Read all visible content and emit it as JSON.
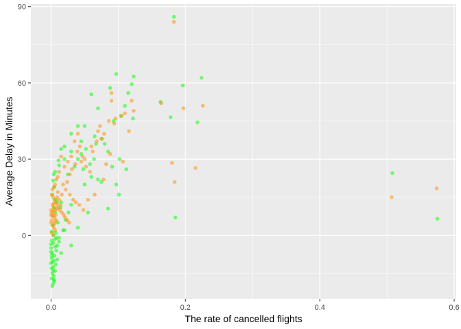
{
  "chart_data": {
    "type": "scatter",
    "title": "",
    "xlabel": "The rate of cancelled flights",
    "ylabel": "Average Delay in Minutes",
    "xlim": [
      -0.03,
      0.603
    ],
    "ylim": [
      -25,
      91
    ],
    "xticks": [
      0.0,
      0.2,
      0.4,
      0.6
    ],
    "xtick_labels": [
      "0.0",
      "0.2",
      "0.4",
      "0.6"
    ],
    "yticks": [
      0,
      30,
      60,
      90
    ],
    "ytick_labels": [
      "0",
      "30",
      "60",
      "90"
    ],
    "grid": true,
    "legend": "none",
    "colors": {
      "panel": "#ebebeb",
      "grid": "#ffffff",
      "series_a": "#00ff00",
      "series_b": "#ff8c00"
    },
    "series": [
      {
        "color": "#00ff00",
        "points": [
          [
            0.183,
            86
          ],
          [
            0.097,
            63.5
          ],
          [
            0.123,
            62.5
          ],
          [
            0.224,
            62
          ],
          [
            0.196,
            59
          ],
          [
            0.12,
            59.5
          ],
          [
            0.088,
            58
          ],
          [
            0.115,
            56
          ],
          [
            0.06,
            55.5
          ],
          [
            0.163,
            52.5
          ],
          [
            0.07,
            50
          ],
          [
            0.11,
            51
          ],
          [
            0.104,
            47
          ],
          [
            0.122,
            46
          ],
          [
            0.093,
            45
          ],
          [
            0.05,
            43
          ],
          [
            0.04,
            43
          ],
          [
            0.03,
            40
          ],
          [
            0.065,
            39
          ],
          [
            0.08,
            36
          ],
          [
            0.045,
            37
          ],
          [
            0.02,
            35
          ],
          [
            0.015,
            34
          ],
          [
            0.03,
            33
          ],
          [
            0.04,
            30
          ],
          [
            0.02,
            30
          ],
          [
            0.102,
            30
          ],
          [
            0.011,
            29.5
          ],
          [
            0.012,
            27.5
          ],
          [
            0.035,
            27
          ],
          [
            0.048,
            26
          ],
          [
            0.112,
            26
          ],
          [
            0.006,
            25
          ],
          [
            0.004,
            24
          ],
          [
            0.025,
            24
          ],
          [
            0.003,
            21.5
          ],
          [
            0.005,
            19
          ],
          [
            0.002,
            16
          ],
          [
            0.007,
            14
          ],
          [
            0.015,
            13
          ],
          [
            0.03,
            12
          ],
          [
            0.004,
            11
          ],
          [
            0.006,
            9
          ],
          [
            0.055,
            9
          ],
          [
            0.085,
            10.5
          ],
          [
            0.178,
            46.5
          ],
          [
            0.218,
            44.5
          ],
          [
            0.508,
            24.5
          ],
          [
            0.575,
            6.5
          ],
          [
            0.185,
            7
          ],
          [
            0.01,
            5
          ],
          [
            0.003,
            4
          ],
          [
            0.04,
            3
          ],
          [
            0.02,
            2
          ],
          [
            0.001,
            1.5
          ],
          [
            0.004,
            0
          ],
          [
            0.008,
            -1
          ],
          [
            0.001,
            -2
          ],
          [
            0.012,
            -2.5
          ],
          [
            0.003,
            -3
          ],
          [
            0.03,
            -4
          ],
          [
            0.006,
            -4.5
          ],
          [
            0.0,
            -5
          ],
          [
            0.008,
            -6
          ],
          [
            0.002,
            -7
          ],
          [
            0.015,
            -7
          ],
          [
            0.005,
            -8
          ],
          [
            0.001,
            -9
          ],
          [
            0.009,
            -9.5
          ],
          [
            0.004,
            -10
          ],
          [
            0.0,
            -11
          ],
          [
            0.007,
            -11.5
          ],
          [
            0.003,
            -12.5
          ],
          [
            0.001,
            -13
          ],
          [
            0.006,
            -14
          ],
          [
            0.002,
            -15
          ],
          [
            0.004,
            -16
          ],
          [
            0.001,
            -17
          ],
          [
            0.005,
            -18
          ],
          [
            0.003,
            -19
          ],
          [
            0.002,
            -20
          ],
          [
            0.009,
            -4
          ],
          [
            0.012,
            -1
          ],
          [
            0.018,
            2
          ],
          [
            0.022,
            6
          ],
          [
            0.026,
            9
          ],
          [
            0.014,
            11
          ],
          [
            0.009,
            13
          ],
          [
            0.05,
            20
          ],
          [
            0.06,
            23
          ],
          [
            0.07,
            22
          ],
          [
            0.075,
            21
          ],
          [
            0.058,
            28
          ],
          [
            0.064,
            30
          ],
          [
            0.045,
            32
          ],
          [
            0.052,
            34
          ],
          [
            0.067,
            36
          ],
          [
            0.076,
            38
          ],
          [
            0.085,
            33
          ],
          [
            0.091,
            27
          ],
          [
            0.097,
            20
          ],
          [
            0.101,
            16
          ],
          [
            0.0,
            -6.5
          ],
          [
            0.001,
            -8
          ],
          [
            0.002,
            -10.5
          ],
          [
            0.003,
            -14
          ],
          [
            0.004,
            -17.5
          ],
          [
            0.0,
            -3.5
          ],
          [
            0.006,
            -1.5
          ],
          [
            0.007,
            1
          ]
        ]
      },
      {
        "color": "#ff8c00",
        "points": [
          [
            0.183,
            84
          ],
          [
            0.226,
            51
          ],
          [
            0.164,
            52
          ],
          [
            0.197,
            50
          ],
          [
            0.09,
            56
          ],
          [
            0.09,
            53
          ],
          [
            0.12,
            53
          ],
          [
            0.123,
            49
          ],
          [
            0.105,
            47
          ],
          [
            0.094,
            44
          ],
          [
            0.11,
            48
          ],
          [
            0.116,
            41
          ],
          [
            0.107,
            29
          ],
          [
            0.18,
            28.5
          ],
          [
            0.184,
            21
          ],
          [
            0.215,
            26.5
          ],
          [
            0.507,
            15
          ],
          [
            0.574,
            18.5
          ],
          [
            0.07,
            41
          ],
          [
            0.075,
            38
          ],
          [
            0.06,
            35
          ],
          [
            0.04,
            40
          ],
          [
            0.035,
            37
          ],
          [
            0.05,
            30
          ],
          [
            0.045,
            29
          ],
          [
            0.03,
            31
          ],
          [
            0.025,
            29
          ],
          [
            0.015,
            31
          ],
          [
            0.02,
            27
          ],
          [
            0.012,
            25
          ],
          [
            0.01,
            23
          ],
          [
            0.008,
            22
          ],
          [
            0.006,
            20
          ],
          [
            0.004,
            19
          ],
          [
            0.018,
            20
          ],
          [
            0.022,
            18
          ],
          [
            0.028,
            16
          ],
          [
            0.033,
            14
          ],
          [
            0.037,
            13
          ],
          [
            0.042,
            12
          ],
          [
            0.048,
            10
          ],
          [
            0.055,
            14
          ],
          [
            0.065,
            16
          ],
          [
            0.078,
            22
          ],
          [
            0.082,
            28
          ],
          [
            0.088,
            32
          ],
          [
            0.002,
            18
          ],
          [
            0.001,
            16
          ],
          [
            0.003,
            15
          ],
          [
            0.005,
            14
          ],
          [
            0.007,
            13
          ],
          [
            0.009,
            12
          ],
          [
            0.011,
            11
          ],
          [
            0.013,
            10
          ],
          [
            0.016,
            9
          ],
          [
            0.019,
            8
          ],
          [
            0.021,
            7
          ],
          [
            0.024,
            6
          ],
          [
            0.027,
            5
          ],
          [
            0.002,
            12
          ],
          [
            0.004,
            11
          ],
          [
            0.006,
            10
          ],
          [
            0.001,
            9
          ],
          [
            0.003,
            8
          ],
          [
            0.005,
            7
          ],
          [
            0.008,
            6
          ],
          [
            0.0,
            5
          ],
          [
            0.002,
            4
          ],
          [
            0.004,
            3
          ],
          [
            0.006,
            2
          ],
          [
            0.001,
            1
          ],
          [
            0.003,
            0
          ],
          [
            0.0,
            10
          ],
          [
            0.0,
            8
          ],
          [
            0.001,
            6
          ],
          [
            0.002,
            7.5
          ],
          [
            0.003,
            9.5
          ],
          [
            0.004,
            12.5
          ],
          [
            0.005,
            4.5
          ],
          [
            0.006,
            5.5
          ],
          [
            0.007,
            8
          ],
          [
            0.008,
            10.5
          ],
          [
            0.009,
            15
          ],
          [
            0.01,
            17
          ],
          [
            0.012,
            14
          ],
          [
            0.014,
            12
          ],
          [
            0.016,
            16
          ],
          [
            0.024,
            21
          ],
          [
            0.028,
            24
          ],
          [
            0.031,
            26
          ],
          [
            0.036,
            28
          ],
          [
            0.039,
            33
          ],
          [
            0.043,
            35
          ],
          [
            0.047,
            31
          ],
          [
            0.052,
            27
          ],
          [
            0.058,
            25
          ],
          [
            0.062,
            33
          ],
          [
            0.068,
            37
          ],
          [
            0.073,
            43
          ],
          [
            0.079,
            40
          ],
          [
            0.086,
            45
          ],
          [
            0.096,
            46
          ]
        ]
      }
    ]
  }
}
